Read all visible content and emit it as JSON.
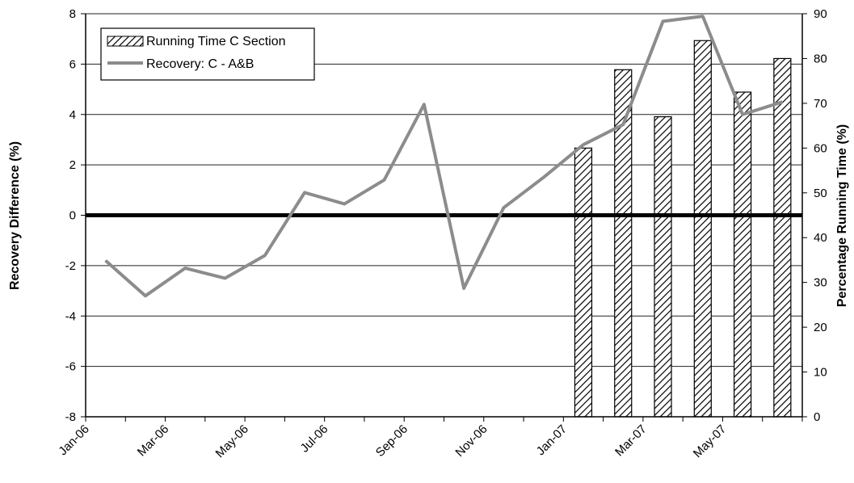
{
  "chart_data": {
    "type": "bar+line",
    "title": "",
    "xlabel": "",
    "ylabel_left": "Recovery Difference (%)",
    "ylabel_right": "Percentage Running Time (%)",
    "x_ticks": [
      "Jan-06",
      "Mar-06",
      "May-06",
      "Jul-06",
      "Sep-06",
      "Nov-06",
      "Jan-07",
      "Mar-07",
      "May-07"
    ],
    "ylim_left": [
      -8,
      8
    ],
    "yticks_left": [
      "8",
      "6",
      "4",
      "2",
      "0",
      "-2",
      "-4",
      "-6",
      "-8"
    ],
    "ylim_right": [
      0,
      90
    ],
    "yticks_right": [
      "90",
      "80",
      "70",
      "60",
      "50",
      "40",
      "30",
      "20",
      "10",
      "0"
    ],
    "grid": true,
    "legend_position": "top-left",
    "series": [
      {
        "name": "Running Time C Section",
        "type": "bar",
        "axis": "right",
        "x": [
          "Jan-07",
          "Feb-07",
          "Mar-07",
          "Apr-07",
          "May-07",
          "Jun-07"
        ],
        "values": [
          60,
          77.5,
          67,
          84,
          72.5,
          80
        ]
      },
      {
        "name": "Recovery: C - A&B",
        "type": "line",
        "axis": "left",
        "color": "#8c8c8c",
        "x": [
          "Jan-06",
          "Feb-06",
          "Mar-06",
          "Apr-06",
          "May-06",
          "Jun-06",
          "Jul-06",
          "Aug-06",
          "Sep-06",
          "Oct-06",
          "Nov-06",
          "Dec-06",
          "Jan-07",
          "Feb-07",
          "Mar-07",
          "Apr-07",
          "May-07",
          "Jun-07"
        ],
        "values": [
          -1.8,
          -3.2,
          -2.1,
          -2.5,
          -1.6,
          0.9,
          0.45,
          1.4,
          4.4,
          -2.9,
          0.3,
          1.5,
          2.8,
          3.6,
          7.7,
          7.9,
          4.0,
          4.5
        ]
      }
    ],
    "reference_line": {
      "axis": "left",
      "value": 0
    }
  }
}
